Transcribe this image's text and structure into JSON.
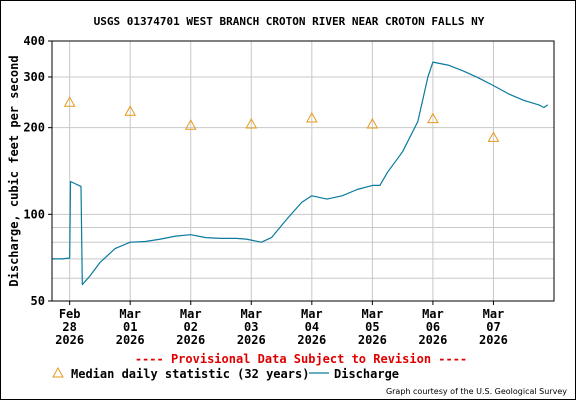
{
  "chart_data": {
    "type": "line",
    "title": "USGS 01374701 WEST BRANCH CROTON RIVER NEAR CROTON FALLS NY",
    "ylabel": "Discharge, cubic feet per second",
    "xlabel": "",
    "y_scale": "log",
    "ylim": [
      50,
      400
    ],
    "y_ticks": [
      {
        "value": 50,
        "label": "50"
      },
      {
        "value": 100,
        "label": "100"
      },
      {
        "value": 200,
        "label": "200"
      },
      {
        "value": 300,
        "label": "300"
      },
      {
        "value": 400,
        "label": "400"
      }
    ],
    "xlim": [
      "2026-02-27T17:00",
      "2026-03-08T00:00"
    ],
    "x_ticks": [
      {
        "date": "2026-02-28",
        "label": [
          "Feb",
          "28",
          "2026"
        ]
      },
      {
        "date": "2026-03-01",
        "label": [
          "Mar",
          "01",
          "2026"
        ]
      },
      {
        "date": "2026-03-02",
        "label": [
          "Mar",
          "02",
          "2026"
        ]
      },
      {
        "date": "2026-03-03",
        "label": [
          "Mar",
          "03",
          "2026"
        ]
      },
      {
        "date": "2026-03-04",
        "label": [
          "Mar",
          "04",
          "2026"
        ]
      },
      {
        "date": "2026-03-05",
        "label": [
          "Mar",
          "05",
          "2026"
        ]
      },
      {
        "date": "2026-03-06",
        "label": [
          "Mar",
          "06",
          "2026"
        ]
      },
      {
        "date": "2026-03-07",
        "label": [
          "Mar",
          "07",
          "2026"
        ]
      }
    ],
    "grid": true,
    "series": [
      {
        "name": "Discharge",
        "kind": "line",
        "color": "#0a7a9e",
        "points": [
          [
            "2026-02-27T17:00",
            70
          ],
          [
            "2026-02-27T21:00",
            70
          ],
          [
            "2026-02-28T00:00",
            70.5
          ],
          [
            "2026-02-28T00:20",
            130
          ],
          [
            "2026-02-28T02:00",
            128
          ],
          [
            "2026-02-28T04:30",
            125
          ],
          [
            "2026-02-28T05:00",
            57
          ],
          [
            "2026-02-28T08:00",
            61
          ],
          [
            "2026-02-28T12:00",
            68
          ],
          [
            "2026-02-28T18:00",
            76
          ],
          [
            "2026-03-01T00:00",
            80
          ],
          [
            "2026-03-01T06:00",
            80.5
          ],
          [
            "2026-03-01T12:00",
            82
          ],
          [
            "2026-03-01T18:00",
            84
          ],
          [
            "2026-03-02T00:00",
            85
          ],
          [
            "2026-03-02T06:00",
            83
          ],
          [
            "2026-03-02T12:00",
            82.5
          ],
          [
            "2026-03-02T18:00",
            82.5
          ],
          [
            "2026-03-02T22:00",
            82
          ],
          [
            "2026-03-03T04:00",
            80
          ],
          [
            "2026-03-03T08:00",
            83
          ],
          [
            "2026-03-03T14:00",
            96
          ],
          [
            "2026-03-03T20:00",
            110
          ],
          [
            "2026-03-04T00:00",
            116
          ],
          [
            "2026-03-04T06:00",
            113
          ],
          [
            "2026-03-04T12:00",
            116
          ],
          [
            "2026-03-04T18:00",
            122
          ],
          [
            "2026-03-05T00:00",
            126
          ],
          [
            "2026-03-05T03:00",
            126
          ],
          [
            "2026-03-05T06:00",
            140
          ],
          [
            "2026-03-05T12:00",
            165
          ],
          [
            "2026-03-05T18:00",
            210
          ],
          [
            "2026-03-05T22:00",
            300
          ],
          [
            "2026-03-06T00:00",
            338
          ],
          [
            "2026-03-06T06:00",
            330
          ],
          [
            "2026-03-06T12:00",
            315
          ],
          [
            "2026-03-06T18:00",
            298
          ],
          [
            "2026-03-07T00:00",
            280
          ],
          [
            "2026-03-07T06:00",
            262
          ],
          [
            "2026-03-07T12:00",
            249
          ],
          [
            "2026-03-07T18:00",
            240
          ],
          [
            "2026-03-07T20:00",
            235
          ],
          [
            "2026-03-07T21:30",
            240
          ]
        ]
      },
      {
        "name": "Median daily statistic (32 years)",
        "kind": "marker",
        "marker": "triangle",
        "color": "#e69a1a",
        "points": [
          [
            "2026-02-28T00:00",
            245
          ],
          [
            "2026-03-01T00:00",
            228
          ],
          [
            "2026-03-02T00:00",
            204
          ],
          [
            "2026-03-03T00:00",
            206
          ],
          [
            "2026-03-04T00:00",
            216
          ],
          [
            "2026-03-05T00:00",
            206
          ],
          [
            "2026-03-06T00:00",
            215
          ],
          [
            "2026-03-07T00:00",
            185
          ]
        ]
      }
    ],
    "annotations": {
      "provisional": "---- Provisional Data Subject to Revision ----",
      "credit": "Graph courtesy of the U.S. Geological Survey"
    },
    "legend_placement": "bottom"
  },
  "colors": {
    "discharge": "#0a7a9e",
    "median": "#e69a1a",
    "provisional": "#e00000",
    "grid": "#c8c8c8"
  }
}
